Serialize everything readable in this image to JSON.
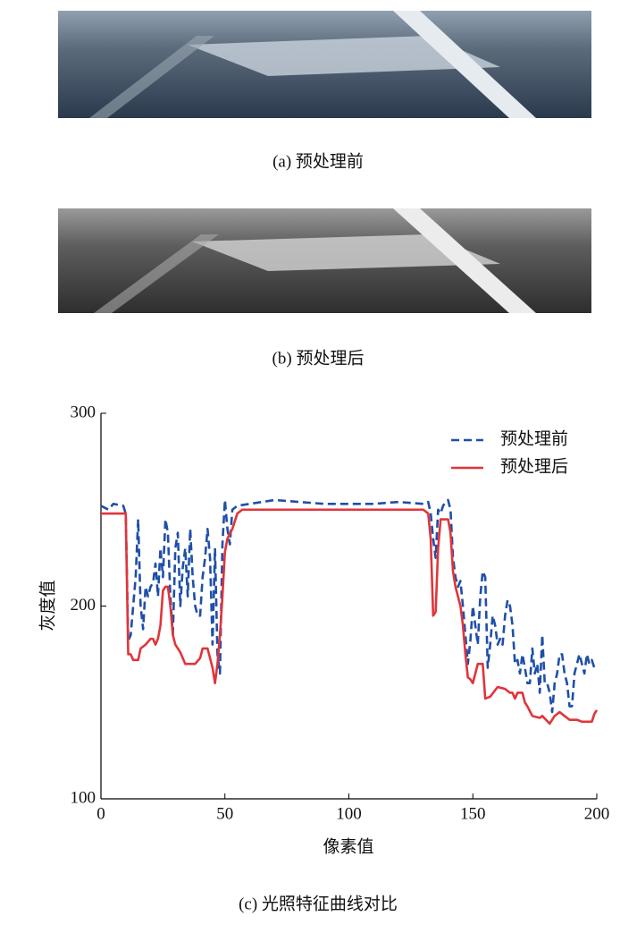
{
  "captions": [
    "(a)  预处理前",
    "(b)  预处理后",
    "(c)  光照特征曲线对比"
  ],
  "chart_data": {
    "type": "line",
    "xlabel": "像素值",
    "ylabel": "灰度值",
    "xlim": [
      0,
      200
    ],
    "xticks": [
      0,
      50,
      100,
      150,
      200
    ],
    "ylim": [
      100,
      300
    ],
    "yticks": [
      100,
      200,
      300
    ],
    "legend": "upper right",
    "series": [
      {
        "name": "预处理前",
        "color": "#1f4fa8",
        "dashed": true,
        "x": [
          0,
          3,
          5,
          9,
          10,
          11,
          12,
          14,
          15,
          16,
          17,
          18,
          19,
          20,
          21,
          22,
          23,
          24,
          25,
          26,
          27,
          28,
          29,
          30,
          31,
          32,
          33,
          34,
          35,
          36,
          37,
          38,
          39,
          40,
          41,
          42,
          43,
          44,
          45,
          46,
          47,
          48,
          49,
          50,
          51,
          52,
          53,
          55,
          60,
          70,
          80,
          90,
          100,
          110,
          120,
          130,
          132,
          133,
          134,
          135,
          136,
          137,
          138,
          139,
          140,
          141,
          142,
          143,
          144,
          145,
          146,
          147,
          148,
          149,
          150,
          151,
          152,
          153,
          154,
          155,
          156,
          157,
          158,
          159,
          160,
          161,
          162,
          163,
          164,
          165,
          166,
          167,
          168,
          169,
          170,
          171,
          172,
          173,
          174,
          175,
          176,
          177,
          178,
          179,
          180,
          181,
          182,
          183,
          184,
          185,
          186,
          187,
          188,
          189,
          190,
          191,
          192,
          193,
          194,
          195,
          196,
          197,
          198,
          199
        ],
        "values": [
          252,
          250,
          253,
          252,
          248,
          182,
          185,
          215,
          245,
          200,
          188,
          210,
          205,
          210,
          212,
          222,
          205,
          230,
          215,
          245,
          238,
          205,
          185,
          230,
          238,
          200,
          220,
          230,
          205,
          240,
          215,
          200,
          195,
          195,
          215,
          225,
          240,
          225,
          180,
          230,
          175,
          165,
          232,
          255,
          240,
          232,
          250,
          252,
          253,
          255,
          254,
          253,
          253,
          253,
          254,
          253,
          254,
          248,
          235,
          225,
          250,
          248,
          252,
          254,
          255,
          250,
          225,
          215,
          210,
          213,
          200,
          185,
          170,
          182,
          200,
          190,
          180,
          205,
          218,
          215,
          168,
          180,
          195,
          190,
          180,
          183,
          180,
          195,
          203,
          200,
          190,
          170,
          172,
          165,
          175,
          168,
          160,
          160,
          178,
          165,
          170,
          155,
          185,
          160,
          160,
          155,
          145,
          160,
          165,
          175,
          175,
          165,
          160,
          148,
          148,
          165,
          170,
          175,
          170,
          165,
          175,
          170,
          172,
          168
        ]
      },
      {
        "name": "预处理后",
        "color": "#e0353a",
        "dashed": false,
        "x": [
          0,
          10,
          11,
          12,
          13,
          15,
          16,
          18,
          20,
          21,
          22,
          23,
          24,
          25,
          26,
          27,
          28,
          29,
          30,
          32,
          34,
          38,
          40,
          41,
          43,
          45,
          46,
          47,
          48,
          49,
          50,
          51,
          53,
          55,
          57,
          60,
          70,
          80,
          100,
          120,
          130,
          132,
          133,
          134,
          135,
          136,
          137,
          139,
          140,
          141,
          142,
          143,
          144,
          145,
          146,
          147,
          148,
          149,
          150,
          152,
          154,
          155,
          157,
          160,
          163,
          165,
          166,
          167,
          168,
          170,
          171,
          172,
          174,
          177,
          178,
          181,
          183,
          185,
          186,
          188,
          189,
          190,
          192,
          194,
          196,
          198,
          199,
          200
        ],
        "values": [
          248,
          248,
          175,
          175,
          172,
          172,
          178,
          180,
          183,
          183,
          180,
          183,
          190,
          208,
          210,
          210,
          200,
          185,
          180,
          176,
          170,
          170,
          173,
          178,
          178,
          168,
          160,
          170,
          185,
          205,
          228,
          235,
          240,
          248,
          250,
          250,
          250,
          250,
          250,
          250,
          250,
          248,
          235,
          195,
          197,
          230,
          245,
          245,
          245,
          238,
          218,
          210,
          205,
          200,
          190,
          175,
          163,
          162,
          160,
          170,
          170,
          152,
          153,
          158,
          157,
          155,
          155,
          152,
          155,
          155,
          150,
          148,
          143,
          142,
          143,
          139,
          143,
          145,
          144,
          142,
          141,
          141,
          141,
          140,
          140,
          140,
          144,
          146
        ]
      }
    ]
  }
}
